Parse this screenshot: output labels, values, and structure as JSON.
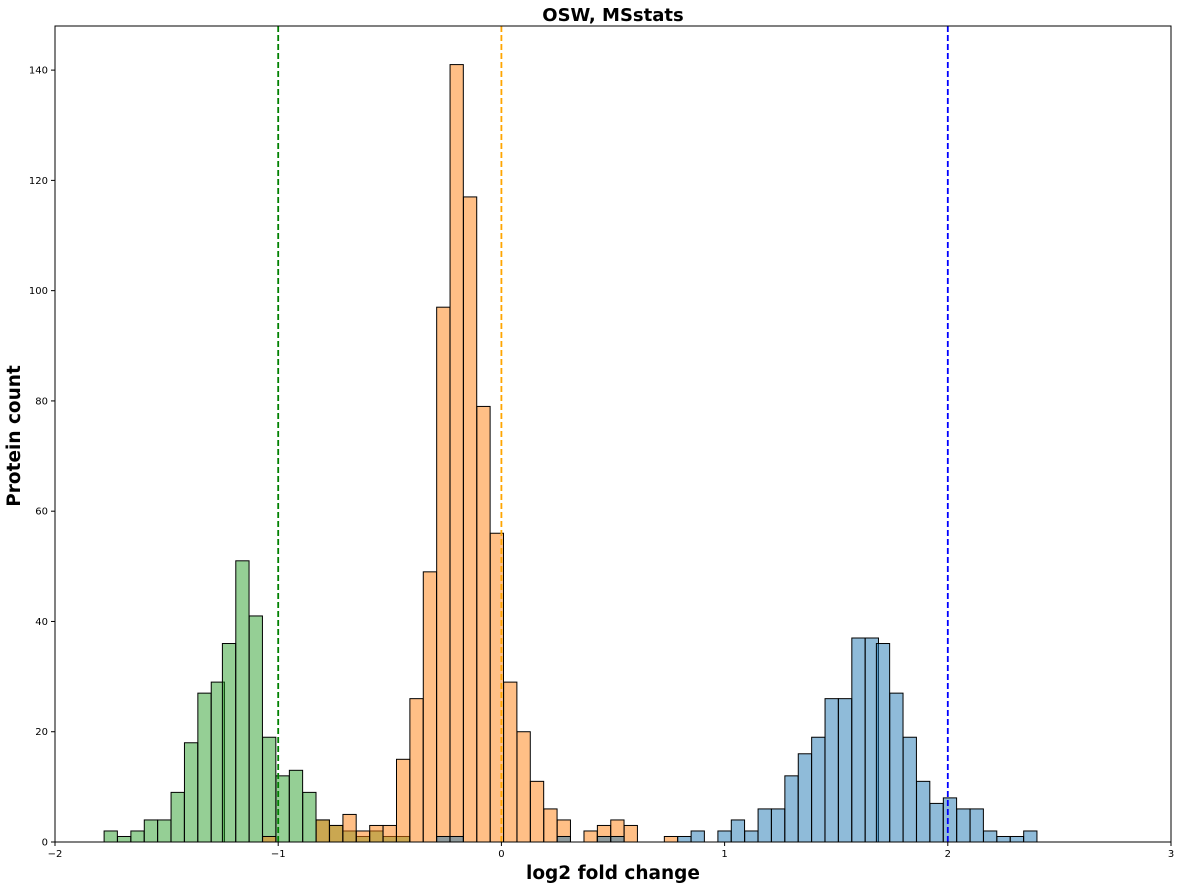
{
  "chart_data": {
    "type": "bar",
    "title": "OSW, MSstats",
    "xlabel": "log2 fold change",
    "ylabel": "Protein count",
    "xlim": [
      -2,
      3
    ],
    "ylim": [
      0,
      148
    ],
    "xticks": [
      "−2",
      "−1",
      "0",
      "1",
      "2",
      "3"
    ],
    "yticks": [
      "0",
      "20",
      "40",
      "60",
      "80",
      "100",
      "120",
      "140"
    ],
    "bin_width": 0.0594,
    "grid": false,
    "legend": "none",
    "series": [
      {
        "color": "#2ca02c",
        "bins": [
          {
            "x": -1.78,
            "count": 2
          },
          {
            "x": -1.72,
            "count": 1
          },
          {
            "x": -1.66,
            "count": 2
          },
          {
            "x": -1.6,
            "count": 4
          },
          {
            "x": -1.54,
            "count": 4
          },
          {
            "x": -1.48,
            "count": 9
          },
          {
            "x": -1.42,
            "count": 18
          },
          {
            "x": -1.36,
            "count": 27
          },
          {
            "x": -1.3,
            "count": 29
          },
          {
            "x": -1.25,
            "count": 36
          },
          {
            "x": -1.19,
            "count": 51
          },
          {
            "x": -1.13,
            "count": 41
          },
          {
            "x": -1.07,
            "count": 19
          },
          {
            "x": -1.01,
            "count": 12
          },
          {
            "x": -0.95,
            "count": 13
          },
          {
            "x": -0.89,
            "count": 9
          },
          {
            "x": -0.83,
            "count": 4
          },
          {
            "x": -0.77,
            "count": 3
          },
          {
            "x": -0.71,
            "count": 2
          },
          {
            "x": -0.65,
            "count": 1
          },
          {
            "x": -0.59,
            "count": 2
          },
          {
            "x": -0.53,
            "count": 1
          },
          {
            "x": -0.47,
            "count": 1
          }
        ]
      },
      {
        "color": "#ff7f0e",
        "bins": [
          {
            "x": -1.07,
            "count": 1
          },
          {
            "x": -0.83,
            "count": 4
          },
          {
            "x": -0.77,
            "count": 3
          },
          {
            "x": -0.71,
            "count": 5
          },
          {
            "x": -0.65,
            "count": 2
          },
          {
            "x": -0.59,
            "count": 3
          },
          {
            "x": -0.53,
            "count": 3
          },
          {
            "x": -0.47,
            "count": 15
          },
          {
            "x": -0.41,
            "count": 26
          },
          {
            "x": -0.35,
            "count": 49
          },
          {
            "x": -0.29,
            "count": 97
          },
          {
            "x": -0.23,
            "count": 141
          },
          {
            "x": -0.17,
            "count": 117
          },
          {
            "x": -0.11,
            "count": 79
          },
          {
            "x": -0.05,
            "count": 56
          },
          {
            "x": 0.01,
            "count": 29
          },
          {
            "x": 0.07,
            "count": 20
          },
          {
            "x": 0.13,
            "count": 11
          },
          {
            "x": 0.19,
            "count": 6
          },
          {
            "x": 0.25,
            "count": 4
          },
          {
            "x": 0.37,
            "count": 2
          },
          {
            "x": 0.43,
            "count": 3
          },
          {
            "x": 0.49,
            "count": 4
          },
          {
            "x": 0.55,
            "count": 3
          },
          {
            "x": 0.73,
            "count": 1
          }
        ]
      },
      {
        "color": "#1f77b4",
        "bins": [
          {
            "x": -0.29,
            "count": 1
          },
          {
            "x": -0.23,
            "count": 1
          },
          {
            "x": 0.25,
            "count": 1
          },
          {
            "x": 0.43,
            "count": 1
          },
          {
            "x": 0.49,
            "count": 1
          },
          {
            "x": 0.79,
            "count": 1
          },
          {
            "x": 0.85,
            "count": 2
          },
          {
            "x": 0.97,
            "count": 2
          },
          {
            "x": 1.03,
            "count": 4
          },
          {
            "x": 1.09,
            "count": 2
          },
          {
            "x": 1.15,
            "count": 6
          },
          {
            "x": 1.21,
            "count": 6
          },
          {
            "x": 1.27,
            "count": 12
          },
          {
            "x": 1.33,
            "count": 16
          },
          {
            "x": 1.39,
            "count": 19
          },
          {
            "x": 1.45,
            "count": 26
          },
          {
            "x": 1.51,
            "count": 26
          },
          {
            "x": 1.57,
            "count": 37
          },
          {
            "x": 1.63,
            "count": 37
          },
          {
            "x": 1.68,
            "count": 36
          },
          {
            "x": 1.74,
            "count": 27
          },
          {
            "x": 1.8,
            "count": 19
          },
          {
            "x": 1.86,
            "count": 11
          },
          {
            "x": 1.92,
            "count": 7
          },
          {
            "x": 1.98,
            "count": 8
          },
          {
            "x": 2.04,
            "count": 6
          },
          {
            "x": 2.1,
            "count": 6
          },
          {
            "x": 2.16,
            "count": 2
          },
          {
            "x": 2.22,
            "count": 1
          },
          {
            "x": 2.28,
            "count": 1
          },
          {
            "x": 2.34,
            "count": 2
          }
        ]
      }
    ],
    "vlines": [
      {
        "x": -1,
        "color": "#008000"
      },
      {
        "x": 0,
        "color": "#ffa500"
      },
      {
        "x": 2,
        "color": "#0000ff"
      }
    ]
  }
}
